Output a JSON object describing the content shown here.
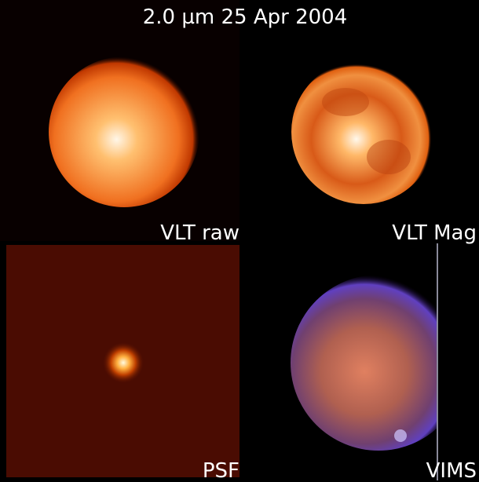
{
  "title": "2.0 µm 25 Apr 2004",
  "panels": [
    {
      "label": "VLT raw"
    },
    {
      "label": "VLT Mag"
    },
    {
      "label": "PSF"
    },
    {
      "label": "VIMS"
    }
  ]
}
